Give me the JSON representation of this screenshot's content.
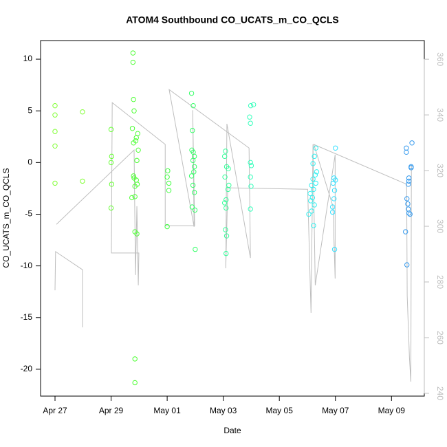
{
  "chart_data": {
    "type": "scatter",
    "title": "ATOM4 Southbound CO_UCATS_m_CO_QCLS",
    "x_label": "Date",
    "y_label": "CO_UCATS_m_CO_QCLS",
    "xlim": [
      -0.515,
      13.17
    ],
    "xticks": [
      {
        "value": 0,
        "label": "Apr 27"
      },
      {
        "value": 2,
        "label": "Apr 29"
      },
      {
        "value": 4,
        "label": "May 01"
      },
      {
        "value": 6,
        "label": "May 03"
      },
      {
        "value": 8,
        "label": "May 05"
      },
      {
        "value": 10,
        "label": "May 07"
      },
      {
        "value": 12,
        "label": "May 09"
      }
    ],
    "ylim": [
      -22.6,
      11.8
    ],
    "yticks": [
      -20,
      -15,
      -10,
      -5,
      0,
      5,
      10
    ],
    "y2lim": [
      239.0,
      366.7
    ],
    "y2ticks": [
      240,
      260,
      280,
      300,
      320,
      340,
      360
    ],
    "y2_color": "#bebebe",
    "series": [
      {
        "color": "#80ff33",
        "x": [
          0,
          0,
          0,
          0,
          0,
          0.98,
          0.98
        ],
        "values": [
          5.5,
          4.6,
          3.0,
          1.6,
          -2.0,
          4.9,
          -1.8
        ]
      },
      {
        "color": "#66ff33",
        "x": [
          2.0,
          2.02,
          2.0,
          2.02,
          2.0
        ],
        "values": [
          3.2,
          0.6,
          0.0,
          -2.1,
          -4.4
        ]
      },
      {
        "color": "#4dff33",
        "x": [
          2.78,
          2.78,
          2.8,
          2.82,
          2.76,
          2.95,
          2.9,
          2.88,
          2.8,
          2.97,
          2.92,
          2.8,
          2.82,
          2.9,
          2.93,
          2.85,
          2.74,
          2.85,
          2.85,
          2.92,
          2.85,
          2.85
        ],
        "values": [
          10.6,
          9.7,
          6.1,
          5.0,
          3.3,
          2.8,
          2.4,
          2.1,
          1.9,
          1.2,
          0.2,
          -1.3,
          -1.5,
          -1.7,
          -2.1,
          -2.3,
          -3.4,
          -3.3,
          -6.7,
          -6.9,
          -19.0,
          -21.3
        ]
      },
      {
        "color": "#40ff40",
        "x": [
          4.02,
          4.0,
          4.06,
          4.06,
          4.0
        ],
        "values": [
          -0.8,
          -1.4,
          -2.0,
          -2.7,
          -6.2
        ]
      },
      {
        "color": "#33ff66",
        "x": [
          4.87,
          4.93,
          4.9,
          4.88,
          4.93,
          4.97,
          4.92,
          4.97,
          4.95,
          4.87,
          4.92,
          4.97,
          4.89,
          4.99,
          5.0
        ],
        "values": [
          6.7,
          5.5,
          3.1,
          1.2,
          1.0,
          0.6,
          0.2,
          -0.4,
          -0.9,
          -1.3,
          -2.2,
          -2.9,
          -4.3,
          -4.6,
          -8.4
        ]
      },
      {
        "color": "#33ff99",
        "x": [
          6.08,
          6.05,
          6.12,
          6.18,
          6.06,
          6.2,
          6.17,
          6.1,
          6.05,
          6.1,
          6.08,
          6.12,
          6.1
        ],
        "values": [
          1.1,
          0.6,
          -0.4,
          -0.6,
          -1.4,
          -2.2,
          -2.6,
          -3.6,
          -3.9,
          -4.4,
          -6.5,
          -7.1,
          -8.8
        ]
      },
      {
        "color": "#33ffbb",
        "x": [
          7.08,
          6.98,
          6.94,
          6.97,
          6.97,
          7.0,
          6.97,
          6.99,
          6.97
        ],
        "values": [
          5.6,
          5.5,
          4.4,
          3.8,
          0.0,
          -0.3,
          -1.4,
          -2.3,
          -4.5
        ]
      },
      {
        "color": "#33f0f0",
        "x": [
          9.3,
          9.25,
          9.2,
          9.33,
          9.28,
          9.2,
          9.3,
          9.15,
          9.22,
          9.1,
          9.18,
          9.12,
          9.25,
          9.15,
          9.05,
          9.22
        ],
        "values": [
          1.4,
          0.6,
          -0.1,
          -0.9,
          -1.2,
          -1.6,
          -2.0,
          -2.2,
          -2.6,
          -3.0,
          -3.4,
          -3.7,
          -4.1,
          -4.7,
          -5.0,
          -6.1
        ]
      },
      {
        "color": "#33e0ff",
        "x": [
          10.0,
          9.95,
          10.0,
          9.92,
          9.97,
          9.95,
          9.9,
          9.9,
          9.97
        ],
        "values": [
          1.4,
          -1.5,
          -1.7,
          -2.0,
          -2.7,
          -3.5,
          -4.3,
          -4.8,
          -8.4
        ]
      },
      {
        "color": "#3399ee",
        "x": [
          12.73,
          12.53,
          12.53,
          12.7,
          12.7,
          12.62,
          12.62,
          12.6,
          12.55,
          12.58,
          12.6,
          12.62,
          12.66,
          12.5,
          12.55
        ],
        "values": [
          1.9,
          1.4,
          1.0,
          -0.5,
          -0.4,
          -1.5,
          -1.8,
          -2.1,
          -3.5,
          -4.0,
          -4.5,
          -4.9,
          -5.0,
          -6.7,
          -9.9
        ]
      },
      {
        "type": "line",
        "axis": "y2",
        "color": "#bebebe",
        "x": [
          0.0,
          0.02,
          0.98,
          0.98,
          null,
          0.05,
          2.82,
          2.87,
          2.92,
          2.97,
          2.99,
          2.01,
          2.04,
          3.93,
          3.93,
          4.98,
          4.91,
          4.96,
          4.07,
          6.92,
          6.97,
          6.13,
          6.09,
          6.16,
          9.01,
          9.13,
          9.2,
          9.28,
          9.99,
          9.99,
          9.91,
          9.23,
          12.54,
          12.56,
          12.64,
          12.69,
          12.71
        ],
        "values": [
          277.0,
          290.9,
          284.4,
          263.7,
          null,
          300.7,
          327.4,
          282.5,
          307.2,
          278.8,
          290.4,
          290.4,
          344.4,
          329.4,
          300.2,
          300.2,
          341.7,
          299.8,
          349.1,
          328.1,
          288.6,
          336.8,
          284.9,
          313.8,
          313.3,
          268.9,
          329.4,
          278.8,
          325.7,
          281.2,
          307.2,
          329.4,
          315.1,
          275.1,
          252.8,
          244.2,
          322.0
        ]
      }
    ]
  }
}
